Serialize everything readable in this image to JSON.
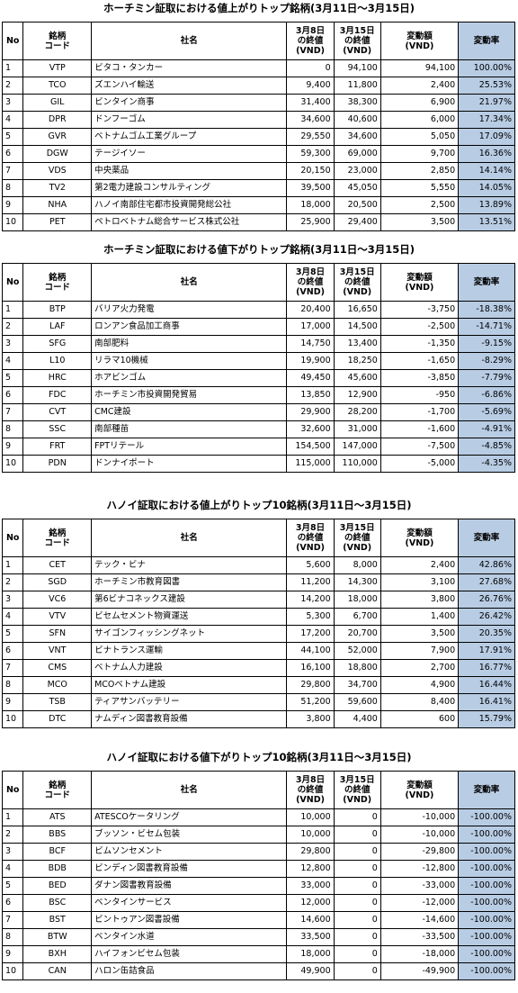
{
  "headers": {
    "no": "No",
    "code": [
      "銘柄",
      "コード"
    ],
    "name": "社名",
    "price_before": [
      "3月8日",
      "の終値",
      "(VND)"
    ],
    "price_after": [
      "3月15日",
      "の終値",
      "(VND)"
    ],
    "change": [
      "変動額",
      "(VND)"
    ],
    "rate": "変動率"
  },
  "tables": [
    {
      "title": "ホーチミン証取における値上がりトップ銘柄(3月11日～3月15日)",
      "rows": [
        {
          "no": "1",
          "code": "VTP",
          "name": "ビタコ・タンカー",
          "p1": "0",
          "p2": "94,100",
          "chg": "94,100",
          "rate": "100.00%"
        },
        {
          "no": "2",
          "code": "TCO",
          "name": "ズエンハイ輸送",
          "p1": "9,400",
          "p2": "11,800",
          "chg": "2,400",
          "rate": "25.53%"
        },
        {
          "no": "3",
          "code": "GIL",
          "name": "ビンタイン商事",
          "p1": "31,400",
          "p2": "38,300",
          "chg": "6,900",
          "rate": "21.97%"
        },
        {
          "no": "4",
          "code": "DPR",
          "name": "ドンフーゴム",
          "p1": "34,600",
          "p2": "40,600",
          "chg": "6,000",
          "rate": "17.34%"
        },
        {
          "no": "5",
          "code": "GVR",
          "name": "ベトナムゴム工業グループ",
          "p1": "29,550",
          "p2": "34,600",
          "chg": "5,050",
          "rate": "17.09%"
        },
        {
          "no": "6",
          "code": "DGW",
          "name": "テージイソー",
          "p1": "59,300",
          "p2": "69,000",
          "chg": "9,700",
          "rate": "16.36%"
        },
        {
          "no": "7",
          "code": "VDS",
          "name": "中央薬品",
          "p1": "20,150",
          "p2": "23,000",
          "chg": "2,850",
          "rate": "14.14%"
        },
        {
          "no": "8",
          "code": "TV2",
          "name": "第2電力建設コンサルティング",
          "p1": "39,500",
          "p2": "45,050",
          "chg": "5,550",
          "rate": "14.05%"
        },
        {
          "no": "9",
          "code": "NHA",
          "name": "ハノイ南部住宅都市投資開発総公社",
          "p1": "18,000",
          "p2": "20,500",
          "chg": "2,500",
          "rate": "13.89%"
        },
        {
          "no": "10",
          "code": "PET",
          "name": "ペトロベトナム総合サービス株式公社",
          "p1": "25,900",
          "p2": "29,400",
          "chg": "3,500",
          "rate": "13.51%"
        }
      ]
    },
    {
      "title": "ホーチミン証取における値下がりトップ銘柄(3月11日～3月15日)",
      "rows": [
        {
          "no": "1",
          "code": "BTP",
          "name": "バリア火力発電",
          "p1": "20,400",
          "p2": "16,650",
          "chg": "-3,750",
          "rate": "-18.38%"
        },
        {
          "no": "2",
          "code": "LAF",
          "name": "ロンアン食品加工商事",
          "p1": "17,000",
          "p2": "14,500",
          "chg": "-2,500",
          "rate": "-14.71%"
        },
        {
          "no": "3",
          "code": "SFG",
          "name": "南部肥料",
          "p1": "14,750",
          "p2": "13,400",
          "chg": "-1,350",
          "rate": "-9.15%"
        },
        {
          "no": "4",
          "code": "L10",
          "name": "リラマ10機械",
          "p1": "19,900",
          "p2": "18,250",
          "chg": "-1,650",
          "rate": "-8.29%"
        },
        {
          "no": "5",
          "code": "HRC",
          "name": "ホアビンゴム",
          "p1": "49,450",
          "p2": "45,600",
          "chg": "-3,850",
          "rate": "-7.79%"
        },
        {
          "no": "6",
          "code": "FDC",
          "name": "ホーチミン市投資開発貿易",
          "p1": "13,850",
          "p2": "12,900",
          "chg": "-950",
          "rate": "-6.86%"
        },
        {
          "no": "7",
          "code": "CVT",
          "name": "CMC建設",
          "p1": "29,900",
          "p2": "28,200",
          "chg": "-1,700",
          "rate": "-5.69%"
        },
        {
          "no": "8",
          "code": "SSC",
          "name": "南部種苗",
          "p1": "32,600",
          "p2": "31,000",
          "chg": "-1,600",
          "rate": "-4.91%"
        },
        {
          "no": "9",
          "code": "FRT",
          "name": "FPTリテール",
          "p1": "154,500",
          "p2": "147,000",
          "chg": "-7,500",
          "rate": "-4.85%"
        },
        {
          "no": "10",
          "code": "PDN",
          "name": "ドンナイポート",
          "p1": "115,000",
          "p2": "110,000",
          "chg": "-5,000",
          "rate": "-4.35%"
        }
      ]
    },
    {
      "title": "ハノイ証取における値上がりトップ10銘柄(3月11日～3月15日)",
      "rows": [
        {
          "no": "1",
          "code": "CET",
          "name": "テック・ビナ",
          "p1": "5,600",
          "p2": "8,000",
          "chg": "2,400",
          "rate": "42.86%"
        },
        {
          "no": "2",
          "code": "SGD",
          "name": "ホーチミン市教育図書",
          "p1": "11,200",
          "p2": "14,300",
          "chg": "3,100",
          "rate": "27.68%"
        },
        {
          "no": "3",
          "code": "VC6",
          "name": "第6ビナコネックス建設",
          "p1": "14,200",
          "p2": "18,000",
          "chg": "3,800",
          "rate": "26.76%"
        },
        {
          "no": "4",
          "code": "VTV",
          "name": "ビセムセメント物資運送",
          "p1": "5,300",
          "p2": "6,700",
          "chg": "1,400",
          "rate": "26.42%"
        },
        {
          "no": "5",
          "code": "SFN",
          "name": "サイゴンフィッシングネット",
          "p1": "17,200",
          "p2": "20,700",
          "chg": "3,500",
          "rate": "20.35%"
        },
        {
          "no": "6",
          "code": "VNT",
          "name": "ビナトランス運輸",
          "p1": "44,100",
          "p2": "52,000",
          "chg": "7,900",
          "rate": "17.91%"
        },
        {
          "no": "7",
          "code": "CMS",
          "name": "ベトナム人力建設",
          "p1": "16,100",
          "p2": "18,800",
          "chg": "2,700",
          "rate": "16.77%"
        },
        {
          "no": "8",
          "code": "MCO",
          "name": "MCOベトナム建設",
          "p1": "29,800",
          "p2": "34,700",
          "chg": "4,900",
          "rate": "16.44%"
        },
        {
          "no": "9",
          "code": "TSB",
          "name": "ティアサンバッテリー",
          "p1": "51,200",
          "p2": "59,600",
          "chg": "8,400",
          "rate": "16.41%"
        },
        {
          "no": "10",
          "code": "DTC",
          "name": "ナムディン図書教育設備",
          "p1": "3,800",
          "p2": "4,400",
          "chg": "600",
          "rate": "15.79%"
        }
      ]
    },
    {
      "title": "ハノイ証取における値下がりトップ10銘柄(3月11日～3月15日)",
      "rows": [
        {
          "no": "1",
          "code": "ATS",
          "name": "ATESCOケータリング",
          "p1": "10,000",
          "p2": "0",
          "chg": "-10,000",
          "rate": "-100.00%"
        },
        {
          "no": "2",
          "code": "BBS",
          "name": "ブッソン・ビセム包装",
          "p1": "10,000",
          "p2": "0",
          "chg": "-10,000",
          "rate": "-100.00%"
        },
        {
          "no": "3",
          "code": "BCF",
          "name": "ビムソンセメント",
          "p1": "29,800",
          "p2": "0",
          "chg": "-29,800",
          "rate": "-100.00%"
        },
        {
          "no": "4",
          "code": "BDB",
          "name": "ビンディン図書教育設備",
          "p1": "12,800",
          "p2": "0",
          "chg": "-12,800",
          "rate": "-100.00%"
        },
        {
          "no": "5",
          "code": "BED",
          "name": "ダナン図書教育設備",
          "p1": "33,000",
          "p2": "0",
          "chg": "-33,000",
          "rate": "-100.00%"
        },
        {
          "no": "6",
          "code": "BSC",
          "name": "ベンタインサービス",
          "p1": "12,000",
          "p2": "0",
          "chg": "-12,000",
          "rate": "-100.00%"
        },
        {
          "no": "7",
          "code": "BST",
          "name": "ビントゥアン図書設備",
          "p1": "14,600",
          "p2": "0",
          "chg": "-14,600",
          "rate": "-100.00%"
        },
        {
          "no": "8",
          "code": "BTW",
          "name": "ベンタイン水道",
          "p1": "33,500",
          "p2": "0",
          "chg": "-33,500",
          "rate": "-100.00%"
        },
        {
          "no": "9",
          "code": "BXH",
          "name": "ハイフォンビセム包装",
          "p1": "18,000",
          "p2": "0",
          "chg": "-18,000",
          "rate": "-100.00%"
        },
        {
          "no": "10",
          "code": "CAN",
          "name": "ハロン缶詰食品",
          "p1": "49,900",
          "p2": "0",
          "chg": "-49,900",
          "rate": "-100.00%"
        }
      ]
    }
  ]
}
